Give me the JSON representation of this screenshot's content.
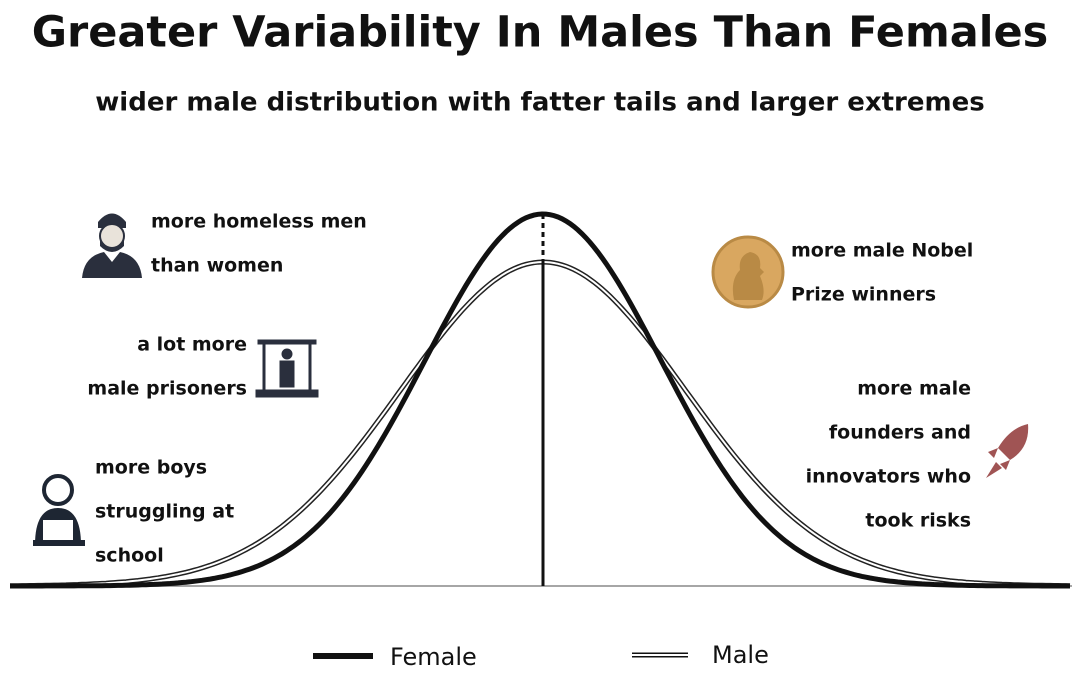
{
  "title": "Greater Variability In Males Than Females",
  "subtitle": "wider male distribution with fatter tails and larger extremes",
  "annotations": {
    "homeless": [
      "more homeless men",
      "than women"
    ],
    "prisoners": [
      "a lot more",
      "male prisoners"
    ],
    "school": [
      "more boys",
      "struggling at",
      "school"
    ],
    "nobel": [
      "more male Nobel",
      "Prize winners"
    ],
    "founders": [
      "more male",
      "founders and",
      "innovators who",
      "took risks"
    ]
  },
  "legend": {
    "female": "Female",
    "male": "Male"
  }
}
